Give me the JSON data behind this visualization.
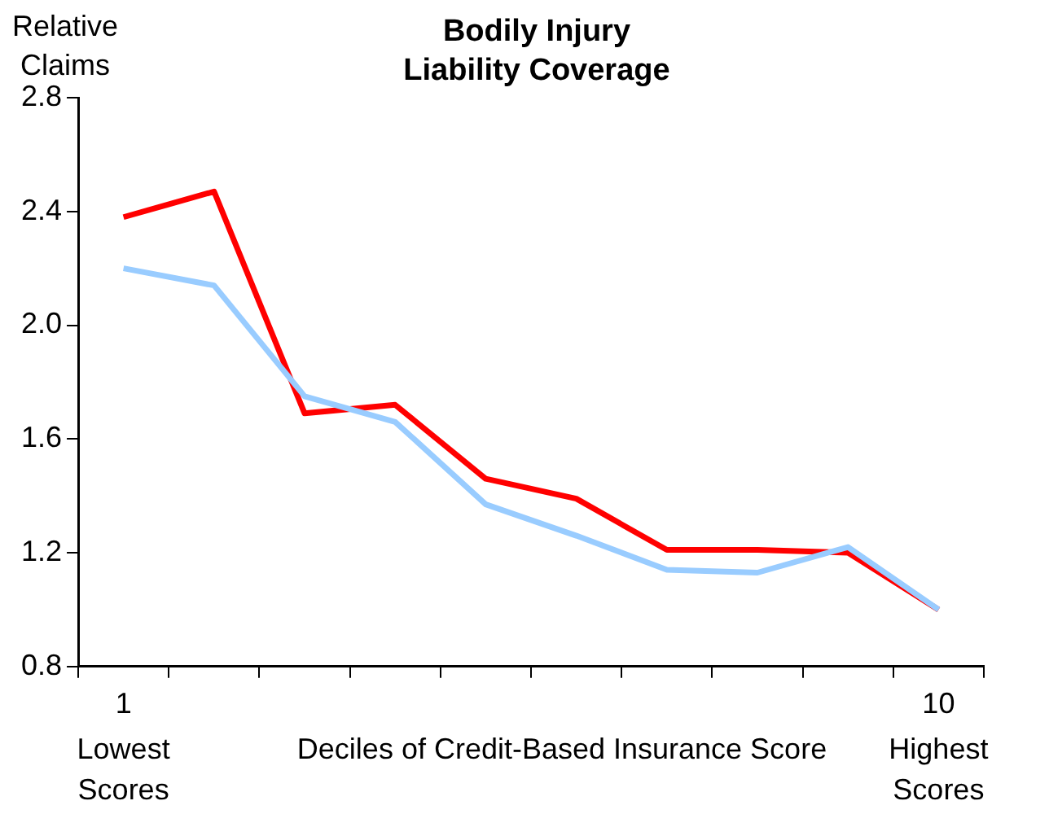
{
  "chart_data": {
    "type": "line",
    "title": "Bodily Injury Liability Coverage",
    "ylabel": "Relative Claims",
    "xlabel": "Deciles of Credit-Based Insurance Score",
    "categories": [
      "1",
      null,
      null,
      null,
      null,
      null,
      null,
      null,
      null,
      "10"
    ],
    "series": [
      {
        "color": "#99ccff",
        "values": [
          2.2,
          2.14,
          1.75,
          1.66,
          1.37,
          1.26,
          1.14,
          1.13,
          1.22,
          1.0
        ]
      },
      {
        "color": "#ff0000",
        "values": [
          2.38,
          2.47,
          1.69,
          1.72,
          1.46,
          1.39,
          1.21,
          1.21,
          1.2,
          1.0
        ]
      }
    ],
    "ylim": [
      0.8,
      2.8
    ],
    "yticks": [
      {
        "value": 0.8,
        "label": "0.8"
      },
      {
        "value": 1.2,
        "label": "1.2"
      },
      {
        "value": 1.6,
        "label": "1.6"
      },
      {
        "value": 2.0,
        "label": "2.0"
      },
      {
        "value": 2.4,
        "label": "2.4"
      },
      {
        "value": 2.8,
        "label": "2.8"
      }
    ],
    "annotations": [
      "Lowest Scores",
      "Highest Scores"
    ],
    "grid": false,
    "legend": false,
    "marker": "none",
    "line_style": "solid"
  }
}
